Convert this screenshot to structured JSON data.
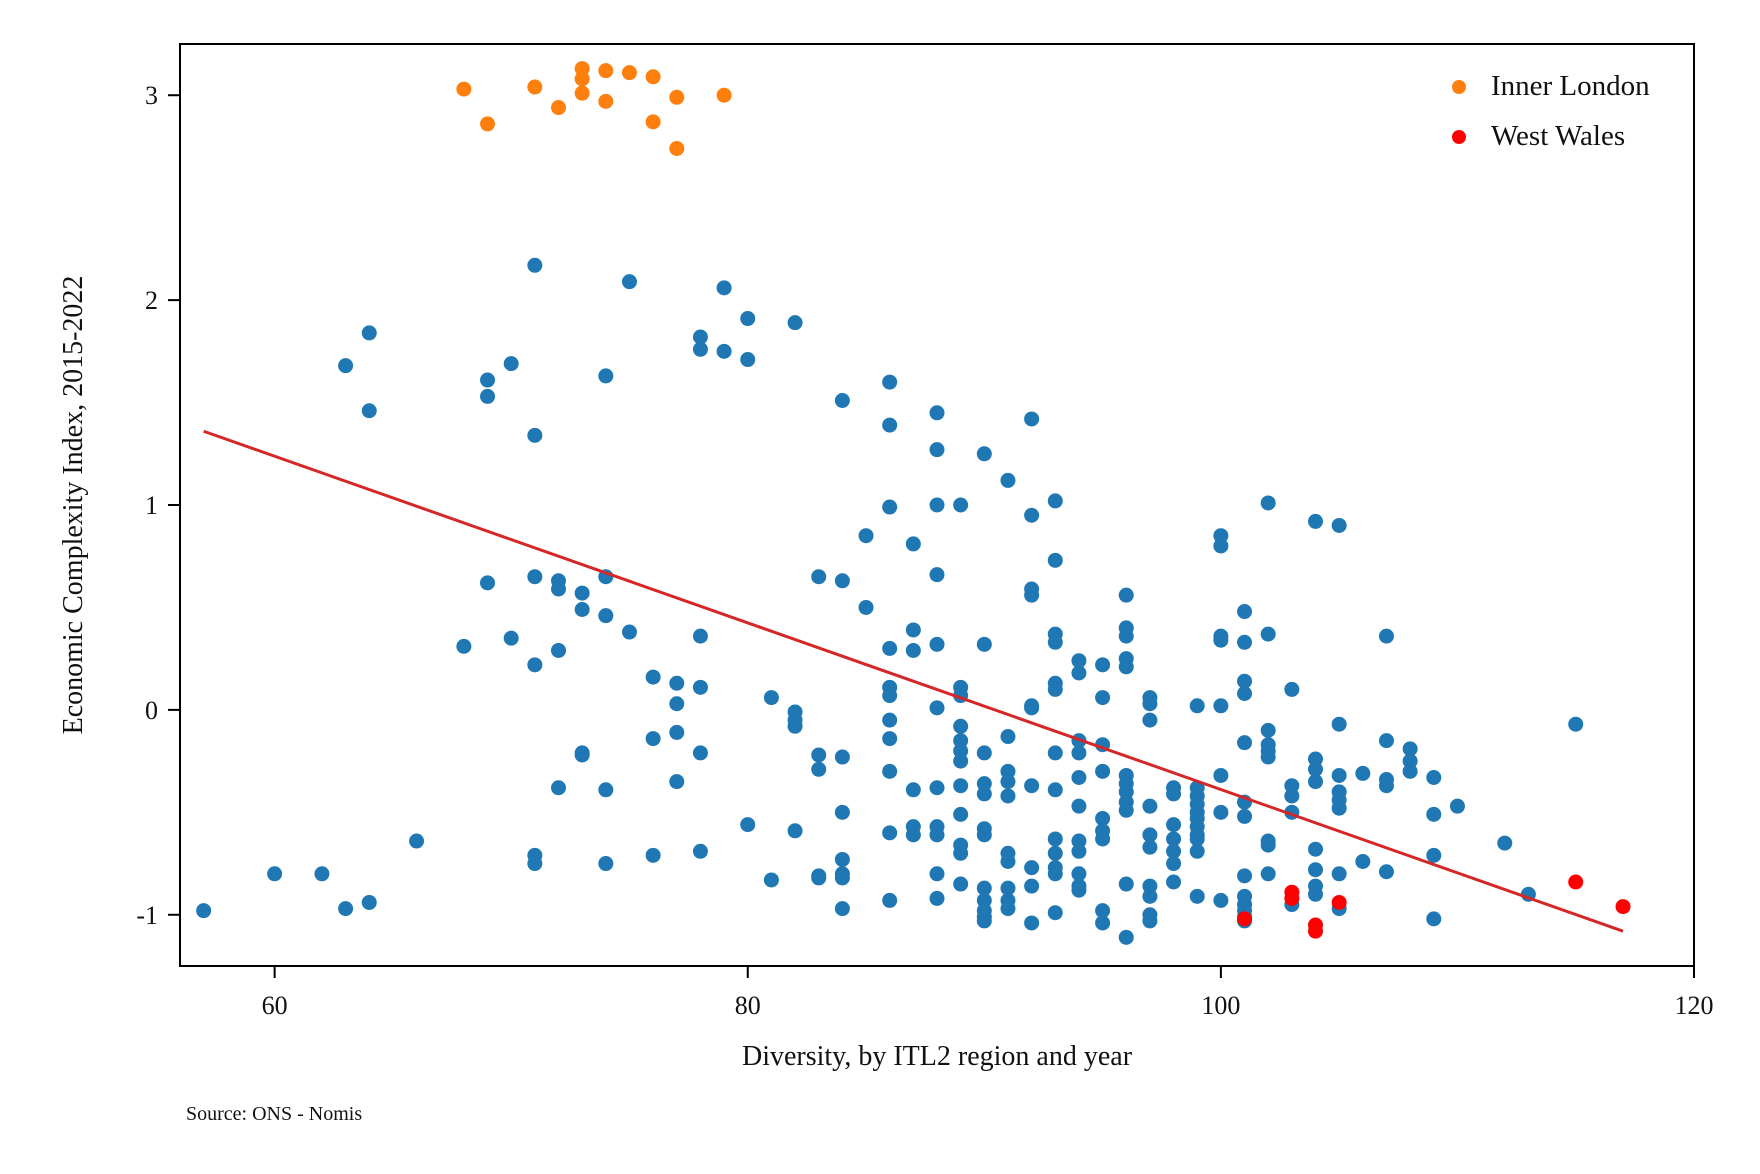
{
  "chart_data": {
    "type": "scatter",
    "xlabel": "Diversity, by ITL2 region and year",
    "ylabel": "Economic Complexity Index, 2015-2022",
    "note": "Source: ONS - Nomis",
    "xlim": [
      56,
      120
    ],
    "ylim": [
      -1.25,
      3.25
    ],
    "xticks": [
      60,
      80,
      100,
      120
    ],
    "yticks": [
      -1,
      0,
      1,
      2,
      3
    ],
    "grid": false,
    "legend_position": "top-right",
    "fit_line": {
      "x": [
        57,
        117
      ],
      "y": [
        1.36,
        -1.08
      ],
      "color": "#d62728"
    },
    "series": [
      {
        "color": "#1f77b4",
        "points": [
          [
            57,
            -0.98
          ],
          [
            60,
            -0.8
          ],
          [
            62,
            -0.8
          ],
          [
            63,
            -0.97
          ],
          [
            64,
            -0.94
          ],
          [
            66,
            -0.64
          ],
          [
            63,
            1.68
          ],
          [
            64,
            1.84
          ],
          [
            64,
            1.46
          ],
          [
            68,
            0.31
          ],
          [
            69,
            0.62
          ],
          [
            69,
            1.61
          ],
          [
            69,
            1.53
          ],
          [
            70,
            1.69
          ],
          [
            70,
            0.35
          ],
          [
            71,
            2.17
          ],
          [
            71,
            1.34
          ],
          [
            71,
            0.65
          ],
          [
            71,
            0.22
          ],
          [
            71,
            -0.71
          ],
          [
            71,
            -0.75
          ],
          [
            72,
            0.63
          ],
          [
            72,
            0.59
          ],
          [
            72,
            0.29
          ],
          [
            72,
            -0.38
          ],
          [
            73,
            0.57
          ],
          [
            73,
            0.49
          ],
          [
            73,
            -0.21
          ],
          [
            73,
            -0.22
          ],
          [
            74,
            1.63
          ],
          [
            74,
            0.65
          ],
          [
            74,
            0.46
          ],
          [
            74,
            -0.39
          ],
          [
            74,
            -0.75
          ],
          [
            75,
            2.09
          ],
          [
            75,
            0.38
          ],
          [
            76,
            0.16
          ],
          [
            76,
            -0.14
          ],
          [
            76,
            -0.71
          ],
          [
            77,
            0.13
          ],
          [
            77,
            0.03
          ],
          [
            77,
            -0.11
          ],
          [
            77,
            -0.35
          ],
          [
            78,
            1.82
          ],
          [
            78,
            1.76
          ],
          [
            78,
            0.36
          ],
          [
            78,
            0.11
          ],
          [
            78,
            -0.21
          ],
          [
            78,
            -0.69
          ],
          [
            79,
            2.06
          ],
          [
            79,
            1.75
          ],
          [
            80,
            1.91
          ],
          [
            80,
            1.71
          ],
          [
            80,
            -0.56
          ],
          [
            81,
            0.06
          ],
          [
            81,
            -0.83
          ],
          [
            82,
            1.89
          ],
          [
            82,
            -0.01
          ],
          [
            82,
            -0.05
          ],
          [
            82,
            -0.08
          ],
          [
            82,
            -0.59
          ],
          [
            83,
            0.65
          ],
          [
            83,
            -0.22
          ],
          [
            83,
            -0.29
          ],
          [
            83,
            -0.81
          ],
          [
            83,
            -0.82
          ],
          [
            84,
            1.51
          ],
          [
            84,
            0.63
          ],
          [
            84,
            -0.23
          ],
          [
            84,
            -0.5
          ],
          [
            84,
            -0.73
          ],
          [
            84,
            -0.8
          ],
          [
            84,
            -0.82
          ],
          [
            84,
            -0.97
          ],
          [
            85,
            0.85
          ],
          [
            85,
            0.5
          ],
          [
            86,
            1.6
          ],
          [
            86,
            1.39
          ],
          [
            86,
            0.99
          ],
          [
            86,
            0.3
          ],
          [
            86,
            0.11
          ],
          [
            86,
            0.07
          ],
          [
            86,
            -0.05
          ],
          [
            86,
            -0.14
          ],
          [
            86,
            -0.3
          ],
          [
            86,
            -0.6
          ],
          [
            86,
            -0.93
          ],
          [
            87,
            0.81
          ],
          [
            87,
            0.39
          ],
          [
            87,
            0.29
          ],
          [
            87,
            -0.39
          ],
          [
            87,
            -0.57
          ],
          [
            87,
            -0.61
          ],
          [
            88,
            1.45
          ],
          [
            88,
            1.27
          ],
          [
            88,
            1.0
          ],
          [
            88,
            0.66
          ],
          [
            88,
            0.32
          ],
          [
            88,
            0.01
          ],
          [
            88,
            -0.38
          ],
          [
            88,
            -0.57
          ],
          [
            88,
            -0.61
          ],
          [
            88,
            -0.8
          ],
          [
            88,
            -0.92
          ],
          [
            89,
            1.0
          ],
          [
            89,
            0.11
          ],
          [
            89,
            0.07
          ],
          [
            89,
            -0.08
          ],
          [
            89,
            -0.15
          ],
          [
            89,
            -0.2
          ],
          [
            89,
            -0.25
          ],
          [
            89,
            -0.37
          ],
          [
            89,
            -0.51
          ],
          [
            89,
            -0.66
          ],
          [
            89,
            -0.7
          ],
          [
            89,
            -0.85
          ],
          [
            90,
            1.25
          ],
          [
            90,
            0.32
          ],
          [
            90,
            -0.21
          ],
          [
            90,
            -0.36
          ],
          [
            90,
            -0.41
          ],
          [
            90,
            -0.58
          ],
          [
            90,
            -0.61
          ],
          [
            90,
            -0.87
          ],
          [
            90,
            -0.93
          ],
          [
            90,
            -0.98
          ],
          [
            90,
            -1.01
          ],
          [
            90,
            -1.03
          ],
          [
            91,
            1.12
          ],
          [
            91,
            -0.13
          ],
          [
            91,
            -0.3
          ],
          [
            91,
            -0.35
          ],
          [
            91,
            -0.42
          ],
          [
            91,
            -0.7
          ],
          [
            91,
            -0.74
          ],
          [
            91,
            -0.87
          ],
          [
            91,
            -0.93
          ],
          [
            91,
            -0.97
          ],
          [
            92,
            1.42
          ],
          [
            92,
            0.95
          ],
          [
            92,
            0.59
          ],
          [
            92,
            0.56
          ],
          [
            92,
            0.02
          ],
          [
            92,
            0.01
          ],
          [
            92,
            -0.37
          ],
          [
            92,
            -0.77
          ],
          [
            92,
            -0.86
          ],
          [
            92,
            -1.04
          ],
          [
            93,
            1.02
          ],
          [
            93,
            0.73
          ],
          [
            93,
            0.37
          ],
          [
            93,
            0.33
          ],
          [
            93,
            0.13
          ],
          [
            93,
            0.1
          ],
          [
            93,
            -0.21
          ],
          [
            93,
            -0.39
          ],
          [
            93,
            -0.63
          ],
          [
            93,
            -0.7
          ],
          [
            93,
            -0.77
          ],
          [
            93,
            -0.8
          ],
          [
            93,
            -0.99
          ],
          [
            94,
            0.24
          ],
          [
            94,
            0.18
          ],
          [
            94,
            -0.15
          ],
          [
            94,
            -0.21
          ],
          [
            94,
            -0.33
          ],
          [
            94,
            -0.47
          ],
          [
            94,
            -0.64
          ],
          [
            94,
            -0.69
          ],
          [
            94,
            -0.8
          ],
          [
            94,
            -0.86
          ],
          [
            94,
            -0.88
          ],
          [
            95,
            0.22
          ],
          [
            95,
            0.06
          ],
          [
            95,
            -0.17
          ],
          [
            95,
            -0.3
          ],
          [
            95,
            -0.53
          ],
          [
            95,
            -0.59
          ],
          [
            95,
            -0.63
          ],
          [
            95,
            -0.98
          ],
          [
            95,
            -1.04
          ],
          [
            96,
            0.56
          ],
          [
            96,
            0.4
          ],
          [
            96,
            0.36
          ],
          [
            96,
            0.25
          ],
          [
            96,
            0.21
          ],
          [
            96,
            -0.32
          ],
          [
            96,
            -0.36
          ],
          [
            96,
            -0.4
          ],
          [
            96,
            -0.45
          ],
          [
            96,
            -0.49
          ],
          [
            96,
            -0.85
          ],
          [
            96,
            -1.11
          ],
          [
            97,
            0.06
          ],
          [
            97,
            0.03
          ],
          [
            97,
            -0.05
          ],
          [
            97,
            -0.47
          ],
          [
            97,
            -0.61
          ],
          [
            97,
            -0.67
          ],
          [
            97,
            -0.86
          ],
          [
            97,
            -0.91
          ],
          [
            97,
            -1.0
          ],
          [
            97,
            -1.03
          ],
          [
            98,
            -0.38
          ],
          [
            98,
            -0.41
          ],
          [
            98,
            -0.56
          ],
          [
            98,
            -0.63
          ],
          [
            98,
            -0.69
          ],
          [
            98,
            -0.75
          ],
          [
            98,
            -0.84
          ],
          [
            99,
            0.02
          ],
          [
            99,
            -0.38
          ],
          [
            99,
            -0.42
          ],
          [
            99,
            -0.46
          ],
          [
            99,
            -0.5
          ],
          [
            99,
            -0.53
          ],
          [
            99,
            -0.57
          ],
          [
            99,
            -0.61
          ],
          [
            99,
            -0.63
          ],
          [
            99,
            -0.69
          ],
          [
            99,
            -0.91
          ],
          [
            100,
            0.85
          ],
          [
            100,
            0.8
          ],
          [
            100,
            0.36
          ],
          [
            100,
            0.34
          ],
          [
            100,
            0.02
          ],
          [
            100,
            -0.32
          ],
          [
            100,
            -0.5
          ],
          [
            100,
            -0.93
          ],
          [
            101,
            0.48
          ],
          [
            101,
            0.33
          ],
          [
            101,
            0.14
          ],
          [
            101,
            0.08
          ],
          [
            101,
            -0.16
          ],
          [
            101,
            -0.45
          ],
          [
            101,
            -0.52
          ],
          [
            101,
            -0.81
          ],
          [
            101,
            -0.91
          ],
          [
            101,
            -0.95
          ],
          [
            101,
            -0.98
          ],
          [
            101,
            -1.01
          ],
          [
            101,
            -1.03
          ],
          [
            102,
            1.01
          ],
          [
            102,
            0.37
          ],
          [
            102,
            -0.1
          ],
          [
            102,
            -0.17
          ],
          [
            102,
            -0.2
          ],
          [
            102,
            -0.23
          ],
          [
            102,
            -0.64
          ],
          [
            102,
            -0.66
          ],
          [
            102,
            -0.8
          ],
          [
            103,
            0.1
          ],
          [
            103,
            -0.37
          ],
          [
            103,
            -0.42
          ],
          [
            103,
            -0.5
          ],
          [
            103,
            -0.95
          ],
          [
            104,
            0.92
          ],
          [
            104,
            -0.24
          ],
          [
            104,
            -0.29
          ],
          [
            104,
            -0.35
          ],
          [
            104,
            -0.68
          ],
          [
            104,
            -0.78
          ],
          [
            104,
            -0.86
          ],
          [
            104,
            -0.9
          ],
          [
            105,
            0.9
          ],
          [
            105,
            -0.07
          ],
          [
            105,
            -0.32
          ],
          [
            105,
            -0.4
          ],
          [
            105,
            -0.44
          ],
          [
            105,
            -0.48
          ],
          [
            105,
            -0.8
          ],
          [
            105,
            -0.97
          ],
          [
            106,
            -0.31
          ],
          [
            106,
            -0.74
          ],
          [
            107,
            0.36
          ],
          [
            107,
            -0.15
          ],
          [
            107,
            -0.34
          ],
          [
            107,
            -0.37
          ],
          [
            107,
            -0.79
          ],
          [
            108,
            -0.19
          ],
          [
            108,
            -0.25
          ],
          [
            108,
            -0.3
          ],
          [
            109,
            -0.33
          ],
          [
            109,
            -0.51
          ],
          [
            109,
            -0.71
          ],
          [
            109,
            -1.02
          ],
          [
            110,
            -0.47
          ],
          [
            112,
            -0.65
          ],
          [
            113,
            -0.9
          ],
          [
            115,
            -0.07
          ]
        ]
      },
      {
        "name": "Inner London",
        "color": "#ff7f0e",
        "points": [
          [
            68,
            3.03
          ],
          [
            69,
            2.86
          ],
          [
            71,
            3.04
          ],
          [
            72,
            2.94
          ],
          [
            73,
            3.13
          ],
          [
            73,
            3.08
          ],
          [
            73,
            3.01
          ],
          [
            74,
            3.12
          ],
          [
            74,
            2.97
          ],
          [
            75,
            3.11
          ],
          [
            76,
            3.09
          ],
          [
            76,
            2.87
          ],
          [
            77,
            2.99
          ],
          [
            77,
            2.74
          ],
          [
            79,
            3.0
          ]
        ]
      },
      {
        "name": "West Wales",
        "color": "#ff0000",
        "points": [
          [
            101,
            -1.02
          ],
          [
            103,
            -0.89
          ],
          [
            103,
            -0.92
          ],
          [
            104,
            -1.05
          ],
          [
            104,
            -1.08
          ],
          [
            105,
            -0.94
          ],
          [
            115,
            -0.84
          ],
          [
            117,
            -0.96
          ]
        ]
      }
    ]
  }
}
